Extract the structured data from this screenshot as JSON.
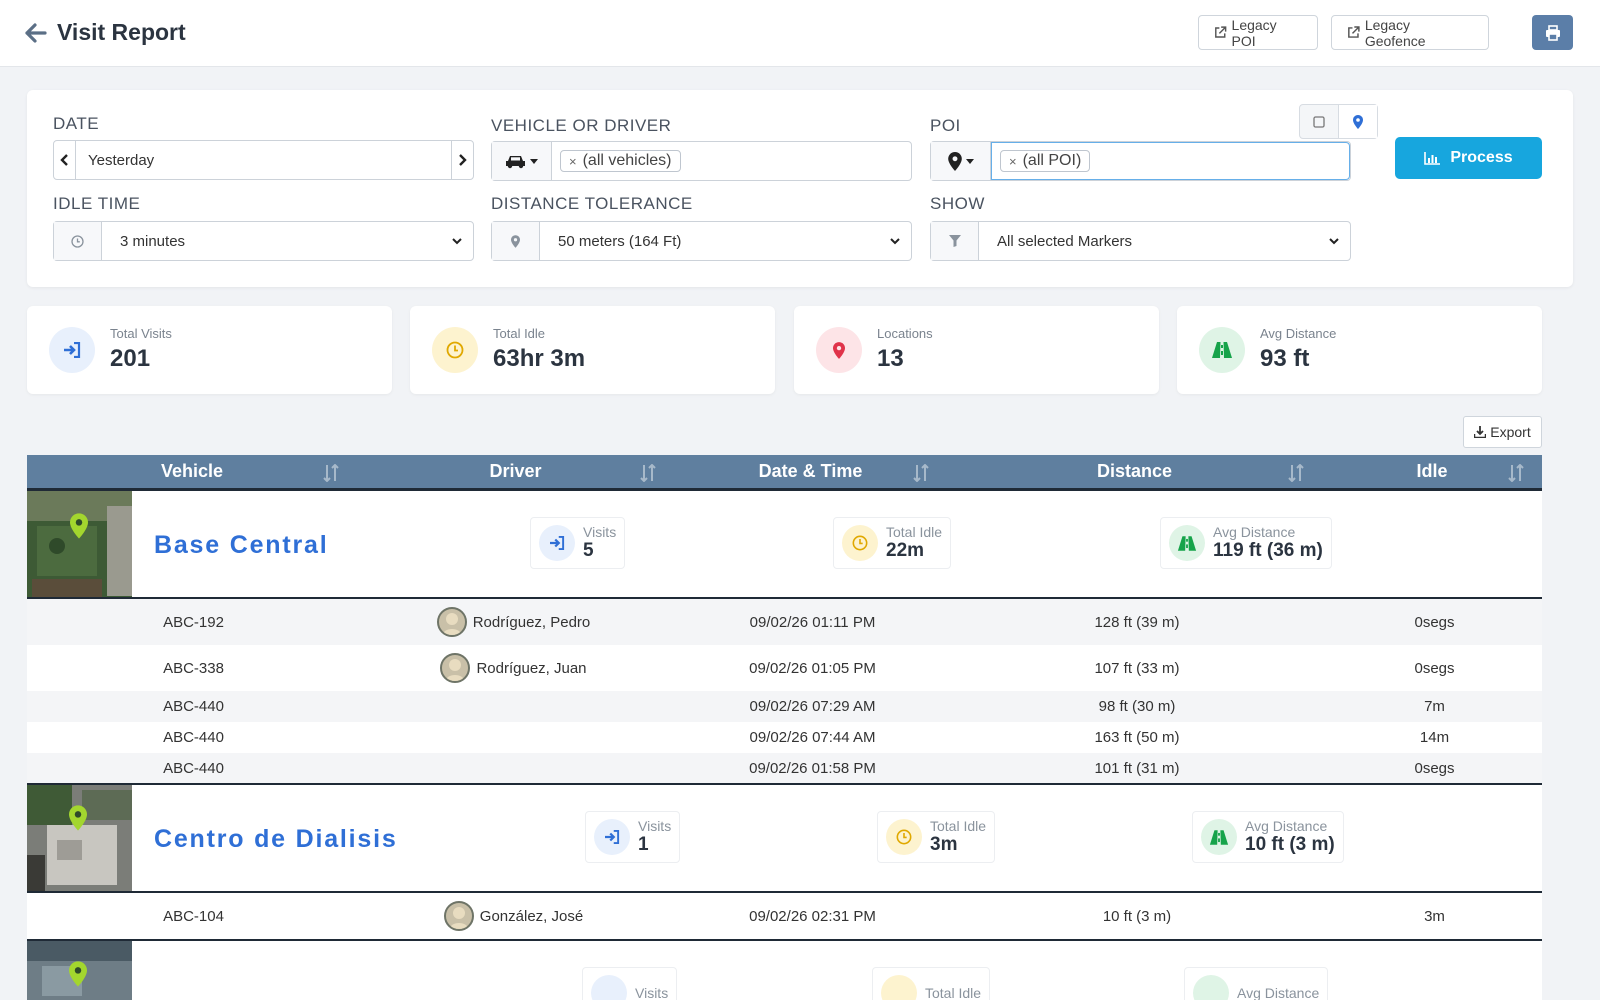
{
  "header": {
    "title": "Visit Report",
    "legacy_poi": "Legacy POI",
    "legacy_geofence": "Legacy Geofence"
  },
  "filters": {
    "date_label": "DATE",
    "date_value": "Yesterday",
    "vehicle_label": "VEHICLE OR DRIVER",
    "vehicle_tag": "(all vehicles)",
    "poi_label": "POI",
    "poi_tag": "(all POI)",
    "idle_label": "IDLE TIME",
    "idle_value": "3 minutes",
    "distance_label": "DISTANCE TOLERANCE",
    "distance_value": "50 meters (164 Ft)",
    "show_label": "SHOW",
    "show_value": "All selected Markers",
    "process": "Process"
  },
  "stats": [
    {
      "label": "Total Visits",
      "value": "201",
      "color": "#3b82f6"
    },
    {
      "label": "Total Idle",
      "value": "63hr 3m",
      "color": "#f0b400"
    },
    {
      "label": "Locations",
      "value": "13",
      "color": "#e0334a"
    },
    {
      "label": "Avg Distance",
      "value": "93 ft",
      "color": "#16a34a"
    }
  ],
  "export": "Export",
  "table": {
    "columns": [
      "Vehicle",
      "Driver",
      "Date & Time",
      "Distance",
      "Idle"
    ],
    "groups": [
      {
        "name": "Base Central",
        "visits_label": "Visits",
        "visits": "5",
        "idle_label": "Total Idle",
        "idle": "22m",
        "dist_label": "Avg Distance",
        "dist": "119 ft (36 m)",
        "rows": [
          {
            "vehicle": "ABC-192",
            "driver": "Rodríguez, Pedro",
            "datetime": "09/02/26 01:11 PM",
            "distance": "128 ft (39 m)",
            "idle": "0segs"
          },
          {
            "vehicle": "ABC-338",
            "driver": "Rodríguez, Juan",
            "datetime": "09/02/26 01:05 PM",
            "distance": "107 ft (33 m)",
            "idle": "0segs"
          },
          {
            "vehicle": "ABC-440",
            "driver": "",
            "datetime": "09/02/26 07:29 AM",
            "distance": "98 ft (30 m)",
            "idle": "7m"
          },
          {
            "vehicle": "ABC-440",
            "driver": "",
            "datetime": "09/02/26 07:44 AM",
            "distance": "163 ft (50 m)",
            "idle": "14m"
          },
          {
            "vehicle": "ABC-440",
            "driver": "",
            "datetime": "09/02/26 01:58 PM",
            "distance": "101 ft (31 m)",
            "idle": "0segs"
          }
        ]
      },
      {
        "name": "Centro de Dialisis",
        "visits_label": "Visits",
        "visits": "1",
        "idle_label": "Total Idle",
        "idle": "3m",
        "dist_label": "Avg Distance",
        "dist": "10 ft (3 m)",
        "rows": [
          {
            "vehicle": "ABC-104",
            "driver": "González, José",
            "datetime": "09/02/26 02:31 PM",
            "distance": "10 ft (3 m)",
            "idle": "3m"
          }
        ]
      },
      {
        "name": "",
        "visits_label": "Visits",
        "idle_label": "Total Idle",
        "dist_label": "Avg Distance"
      }
    ]
  }
}
